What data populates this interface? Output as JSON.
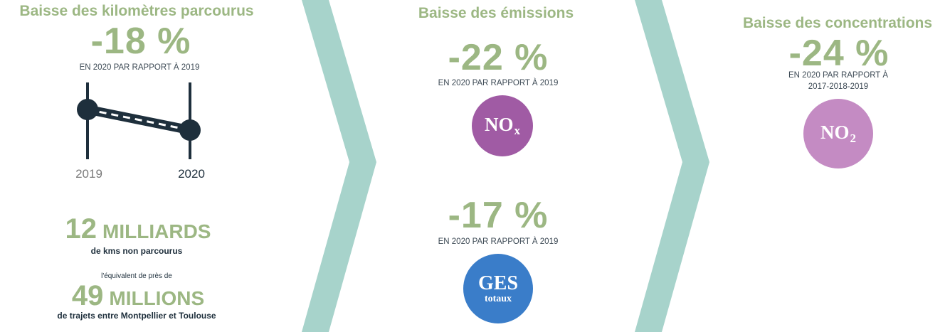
{
  "colors": {
    "green": "#9cb783",
    "teal_chevron": "#a7d3cb",
    "navy": "#1e2f3c",
    "nox_purple": "#a05ba4",
    "no2_lilac": "#c48bc3",
    "ges_blue": "#3a7dc9"
  },
  "col1": {
    "title": "Baisse des kilomètres parcourus",
    "value": "-18 %",
    "sub": "EN 2020 PAR RAPPORT À 2019",
    "chart_data": {
      "type": "line",
      "x": [
        "2019",
        "2020"
      ],
      "values": [
        1.0,
        0.82
      ]
    },
    "stat1_number": "12",
    "stat1_unit": "MILLIARDS",
    "stat1_caption": "de kms non parcourus",
    "equiv": "l'équivalent de près de",
    "stat2_number": "49",
    "stat2_unit": "MILLIONS",
    "stat2_caption": "de trajets entre Montpellier et Toulouse"
  },
  "col2": {
    "title": "Baisse des émissions",
    "item1": {
      "value": "-22 %",
      "sub": "EN 2020 PAR RAPPORT À 2019",
      "badge": "NO",
      "badge_sub": "x"
    },
    "item2": {
      "value": "-17 %",
      "sub": "EN 2020 PAR RAPPORT À 2019",
      "badge": "GES",
      "badge_sub": "totaux"
    }
  },
  "col3": {
    "title": "Baisse des concentrations",
    "value": "-24 %",
    "sub_line1": "EN 2020 PAR RAPPORT À",
    "sub_line2": "2017-2018-2019",
    "badge": "NO",
    "badge_sub": "2"
  }
}
